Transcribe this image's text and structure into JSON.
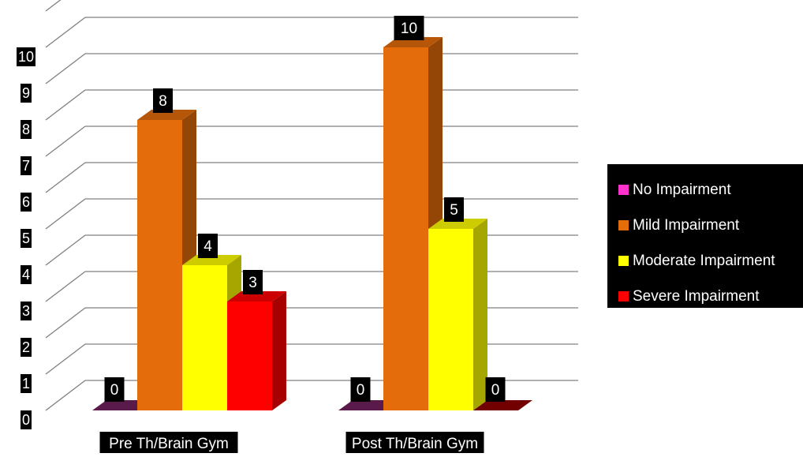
{
  "chart_data": {
    "type": "bar",
    "categories": [
      "Pre Th/Brain Gym",
      "Post Th/Brain Gym"
    ],
    "series": [
      {
        "name": "No Impairment",
        "values": [
          0,
          0
        ],
        "color": "#ff33cc"
      },
      {
        "name": "Mild Impairment",
        "values": [
          8,
          10
        ],
        "color": "#e46c0a"
      },
      {
        "name": "Moderate Impairment",
        "values": [
          4,
          5
        ],
        "color": "#ffff00"
      },
      {
        "name": "Severe Impairment",
        "values": [
          3,
          0
        ],
        "color": "#ff0000"
      }
    ],
    "ylim": [
      0,
      10
    ],
    "ytick_labels": [
      "0",
      "1",
      "2",
      "3",
      "4",
      "5",
      "6",
      "7",
      "8",
      "9",
      "10"
    ],
    "data_labels": [
      [
        "0",
        "0"
      ],
      [
        "8",
        "10"
      ],
      [
        "4",
        "5"
      ],
      [
        "3",
        "0"
      ]
    ],
    "grid": true,
    "legend_position": "right",
    "style": "3d-column"
  }
}
